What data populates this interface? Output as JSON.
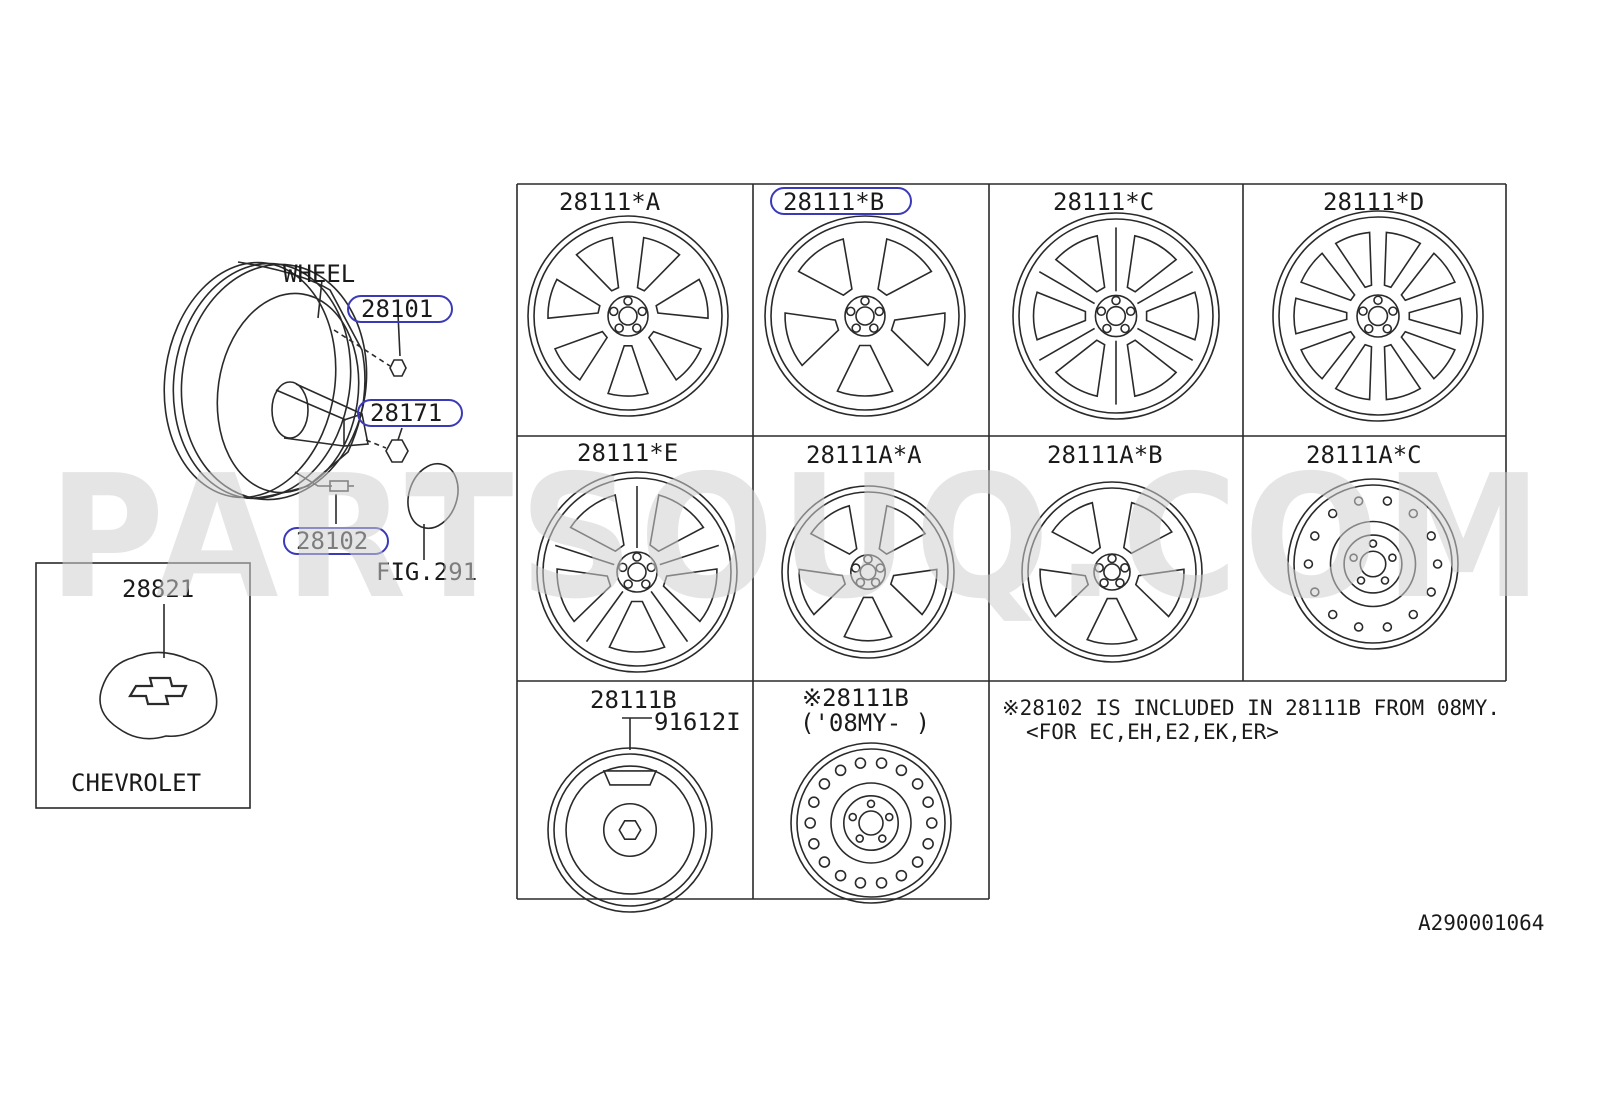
{
  "watermark": "PARTSOUQ.COM",
  "diagram_code": "A290001064",
  "assembly": {
    "wheel_label": "WHEEL",
    "callouts": [
      {
        "id": "28101",
        "highlighted": true
      },
      {
        "id": "28171",
        "highlighted": true
      },
      {
        "id": "28102",
        "highlighted": true
      }
    ],
    "fig_ref": "FIG.291"
  },
  "chevrolet_box": {
    "part": "28821",
    "brand": "CHEVROLET"
  },
  "grid": {
    "cells": [
      {
        "label": "28111*A",
        "style": "seven-split-spoke",
        "highlighted": false
      },
      {
        "label": "28111*B",
        "style": "five-window",
        "highlighted": true
      },
      {
        "label": "28111*C",
        "style": "six-twin-spoke",
        "highlighted": false
      },
      {
        "label": "28111*D",
        "style": "ten-spoke",
        "highlighted": false
      },
      {
        "label": "28111*E",
        "style": "five-double-spoke",
        "highlighted": false
      },
      {
        "label": "28111A*A",
        "style": "five-spoke",
        "highlighted": false
      },
      {
        "label": "28111A*B",
        "style": "five-window-b",
        "highlighted": false
      },
      {
        "label": "28111A*C",
        "style": "steel",
        "highlighted": false
      },
      {
        "label": "28111B",
        "sublabel": "91612I",
        "style": "spare",
        "highlighted": false
      },
      {
        "label": "※28111B",
        "sublabel": "('08MY-   )",
        "style": "steel-holes",
        "highlighted": false
      }
    ]
  },
  "note": {
    "line1": "※28102 IS INCLUDED IN 28111B FROM 08MY.",
    "line2": "<FOR EC,EH,E2,EK,ER>"
  },
  "colors": {
    "line": "#2a2a2a",
    "highlight": "#3a3ab8",
    "watermark": "#cfcfcf"
  }
}
